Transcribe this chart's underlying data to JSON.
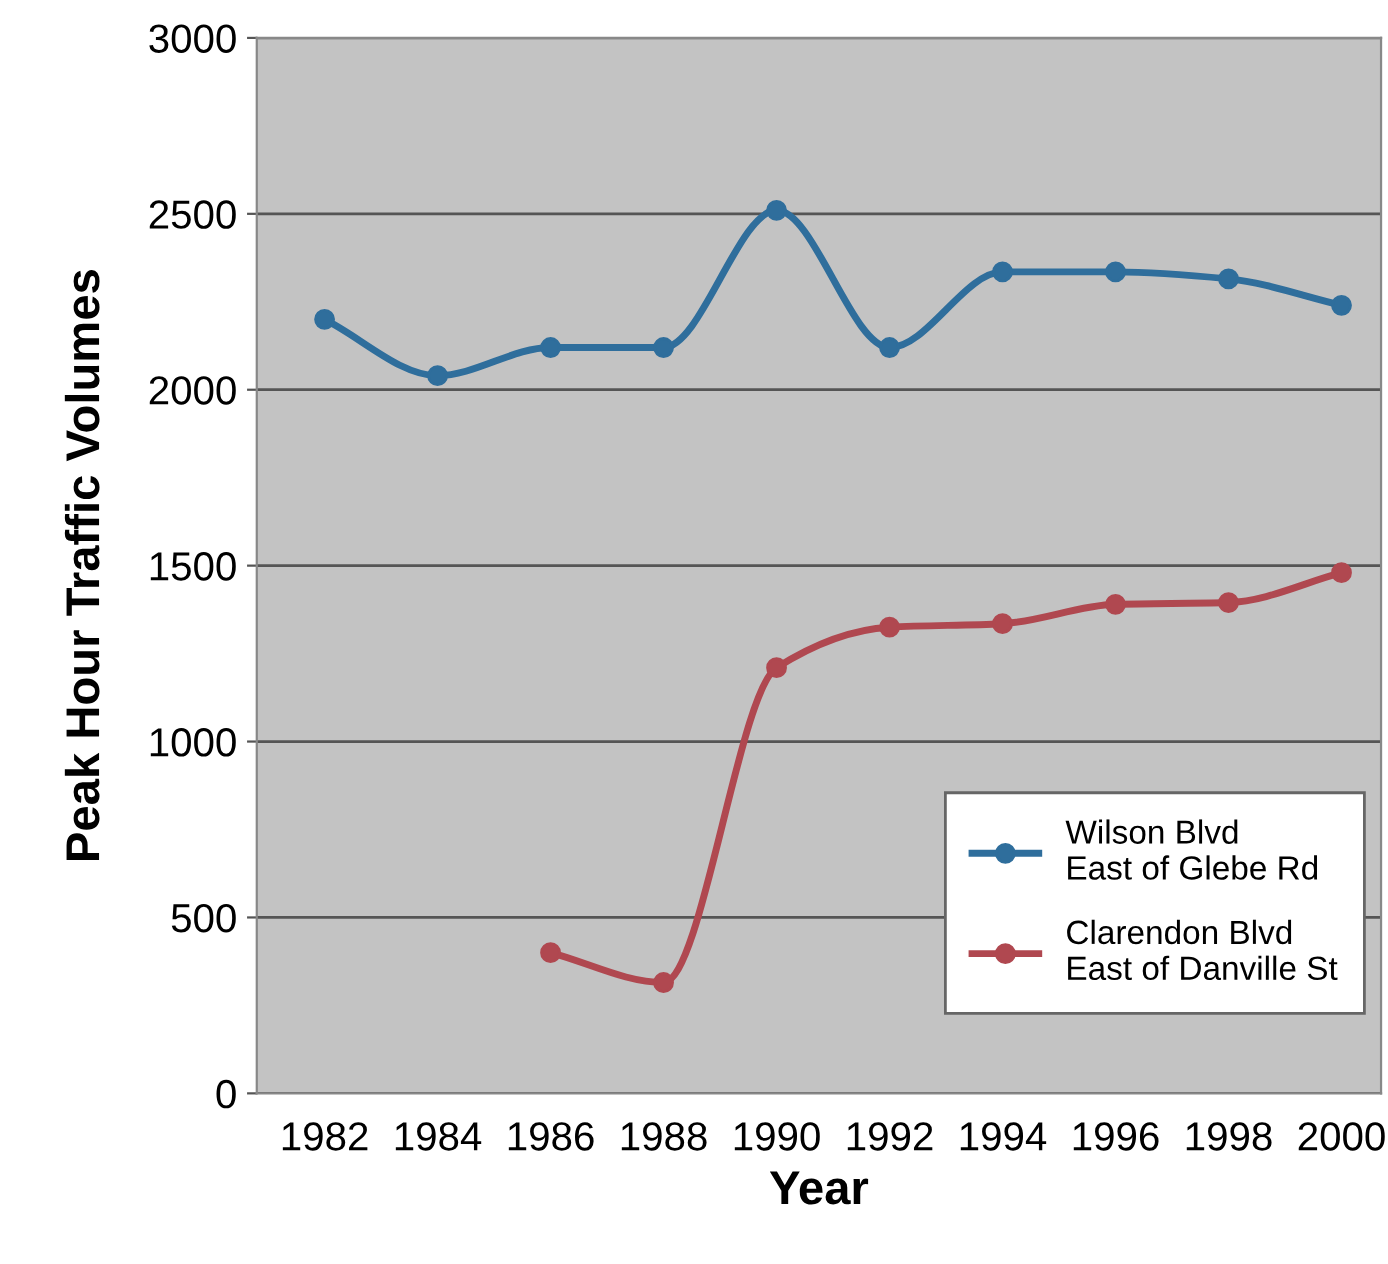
{
  "chart_data": {
    "type": "line",
    "xlabel": "Year",
    "ylabel": "Peak Hour Traffic Volumes",
    "xlim": [
      1980.8,
      2000.7
    ],
    "xticks": [
      1982,
      1984,
      1986,
      1988,
      1990,
      1992,
      1994,
      1996,
      1998,
      2000
    ],
    "ylim": [
      0,
      3000
    ],
    "yticks": [
      0,
      500,
      1000,
      1500,
      2000,
      2500,
      3000
    ],
    "grid": "y",
    "legend": "bottom right",
    "marker": "circle",
    "line_style": "solid",
    "series": [
      {
        "name": "Wilson Blvd\nEast of Glebe Rd",
        "color": "#2f6e9c",
        "x": [
          1982,
          1984,
          1986,
          1988,
          1990,
          1992,
          1994,
          1996,
          1998,
          2000
        ],
        "values": [
          2200,
          2040,
          2120,
          2120,
          2510,
          2120,
          2335,
          2335,
          2315,
          2240
        ]
      },
      {
        "name": "Clarendon Blvd\nEast of Danville St",
        "color": "#b04850",
        "x": [
          1986,
          1988,
          1990,
          1992,
          1994,
          1996,
          1998,
          2000
        ],
        "values": [
          400,
          315,
          1210,
          1325,
          1335,
          1390,
          1395,
          1480
        ]
      }
    ]
  }
}
